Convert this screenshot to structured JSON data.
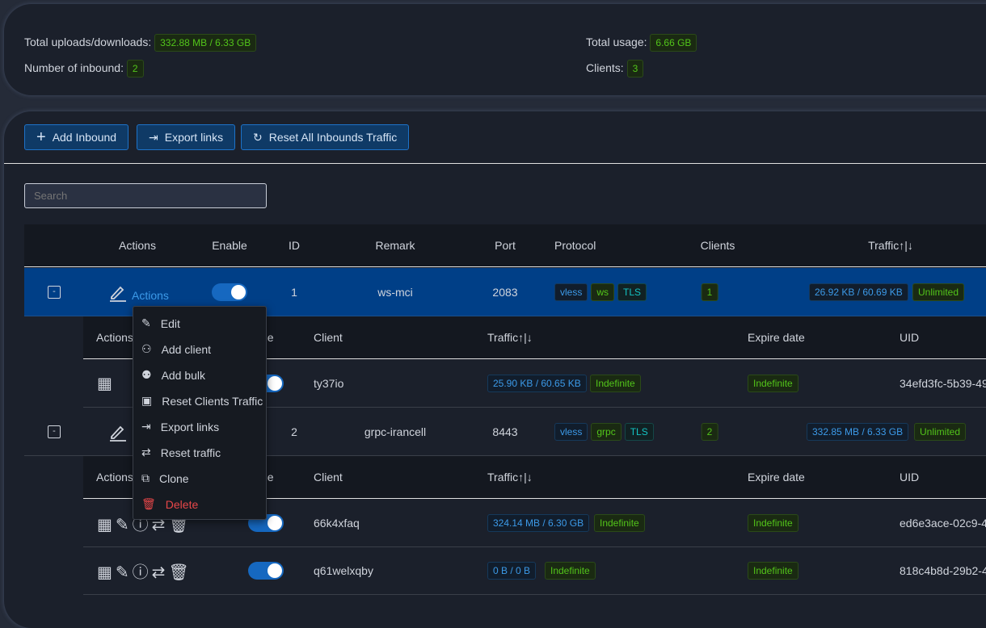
{
  "stats": {
    "total_updown_label": "Total uploads/downloads:",
    "total_updown_value": "332.88 MB / 6.33 GB",
    "inbound_count_label": "Number of inbound:",
    "inbound_count_value": "2",
    "total_usage_label": "Total usage:",
    "total_usage_value": "6.66 GB",
    "clients_label": "Clients:",
    "clients_value": "3"
  },
  "toolbar": {
    "add": "Add Inbound",
    "export": "Export links",
    "reset": "Reset All Inbounds Traffic"
  },
  "search": {
    "placeholder": "Search"
  },
  "table": {
    "headers": {
      "actions": "Actions",
      "enable": "Enable",
      "id": "ID",
      "remark": "Remark",
      "port": "Port",
      "protocol": "Protocol",
      "clients": "Clients",
      "traffic": "Traffic↑|↓"
    },
    "sub_headers": {
      "actions": "Actions",
      "enable": "Enable",
      "client": "Client",
      "traffic": "Traffic↑|↓",
      "expire": "Expire date",
      "uid": "UID"
    },
    "inbounds": [
      {
        "actions_label": "Actions",
        "id": "1",
        "remark": "ws-mci",
        "port": "2083",
        "protocol": [
          "vless",
          "ws",
          "TLS"
        ],
        "clients": "1",
        "traffic": "26.92 KB / 60.69 KB",
        "limit": "Unlimited",
        "enabled": true,
        "clients_list": [
          {
            "name": "ty37io",
            "traffic": "25.90 KB / 60.65 KB",
            "total": "Indefinite",
            "expire": "Indefinite",
            "uid": "34efd3fc-5b39-49",
            "enabled": true
          }
        ]
      },
      {
        "id": "2",
        "remark": "grpc-irancell",
        "port": "8443",
        "protocol": [
          "vless",
          "grpc",
          "TLS"
        ],
        "clients": "2",
        "traffic": "332.85 MB / 6.33 GB",
        "limit": "Unlimited",
        "enabled": true,
        "clients_list": [
          {
            "name": "66k4xfaq",
            "traffic": "324.14 MB / 6.30 GB",
            "total": "Indefinite",
            "expire": "Indefinite",
            "uid": "ed6e3ace-02c9-4",
            "enabled": true
          },
          {
            "name": "q61welxqby",
            "traffic": "0 B / 0 B",
            "total": "Indefinite",
            "expire": "Indefinite",
            "uid": "818c4b8d-29b2-4",
            "enabled": true
          }
        ]
      }
    ]
  },
  "menu": {
    "items": [
      "Edit",
      "Add client",
      "Add bulk",
      "Reset Clients Traffic",
      "Export links",
      "Reset traffic",
      "Clone",
      "Delete"
    ]
  },
  "colors": {
    "accent": "#1668c0",
    "selected_row": "#003f87",
    "success": "#52c41a",
    "danger": "#e84749"
  }
}
